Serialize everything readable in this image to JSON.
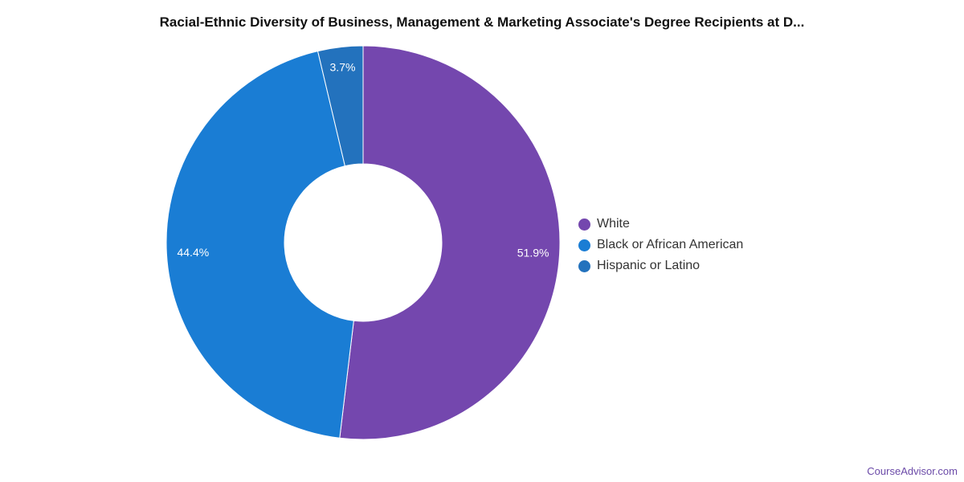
{
  "chart_data": {
    "type": "pie",
    "donut": true,
    "title": "Racial-Ethnic Diversity of Business, Management & Marketing Associate's Degree Recipients at D...",
    "legend_position": "right",
    "slices": [
      {
        "name": "White",
        "value": 51.9,
        "label": "51.9%",
        "color": "#7447ae"
      },
      {
        "name": "Black or African American",
        "value": 44.4,
        "label": "44.4%",
        "color": "#1a7dd4"
      },
      {
        "name": "Hispanic or Latino",
        "value": 3.7,
        "label": "3.7%",
        "color": "#2372bd"
      }
    ]
  },
  "credit": "CourseAdvisor.com"
}
